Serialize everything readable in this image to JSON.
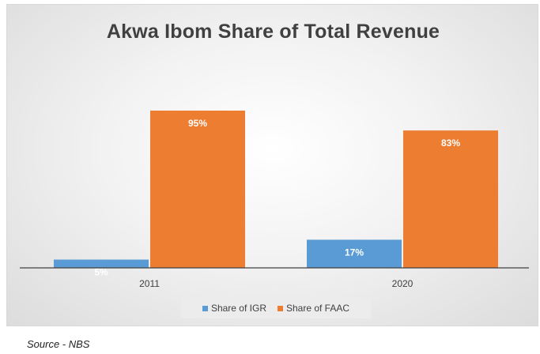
{
  "chart_data": {
    "type": "bar",
    "title": "Akwa Ibom Share of Total Revenue",
    "categories": [
      "2011",
      "2020"
    ],
    "series": [
      {
        "name": "Share of IGR",
        "values": [
          5,
          17
        ],
        "labels": [
          "5%",
          "17%"
        ],
        "color": "#5b9bd5"
      },
      {
        "name": "Share of FAAC",
        "values": [
          95,
          83
        ],
        "labels": [
          "95%",
          "83%"
        ],
        "color": "#ed7d31"
      }
    ],
    "ylim": [
      0,
      100
    ],
    "grid": false,
    "legend_position": "bottom",
    "xlabel": "",
    "ylabel": ""
  },
  "source_note": "Source - NBS"
}
